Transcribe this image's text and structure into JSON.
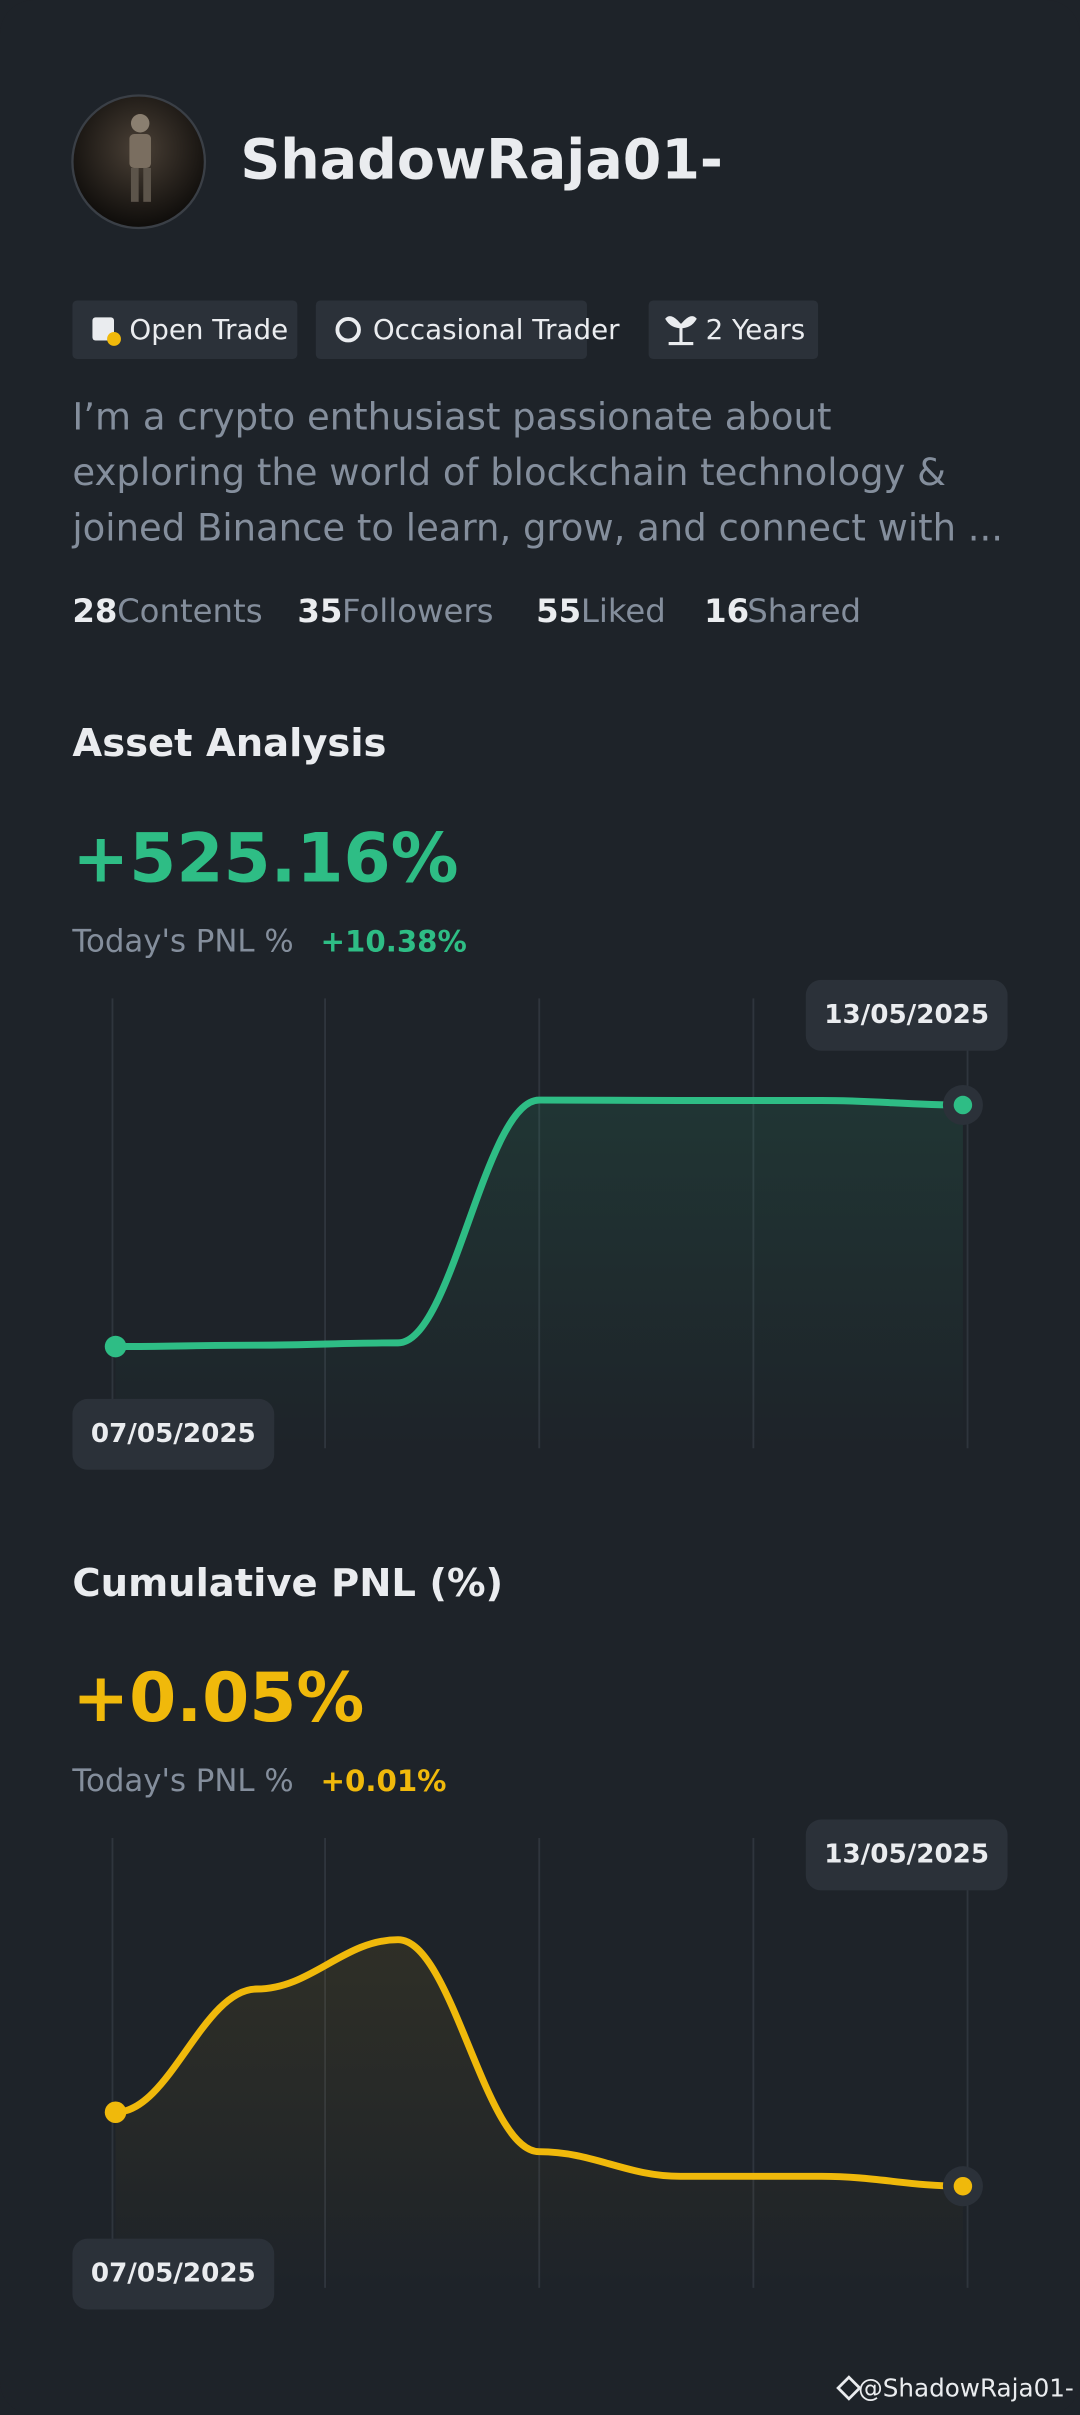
{
  "profile": {
    "name": "ShadowRaja01-",
    "tags": [
      "Open Trade",
      "Occasional Trader",
      "2 Years"
    ],
    "bio": [
      "I’m a crypto enthusiast passionate about",
      "exploring the world of blockchain technology &",
      "joined Binance to learn, grow, and connect with ..."
    ],
    "stats": [
      {
        "count": 28,
        "label": "Contents"
      },
      {
        "count": 35,
        "label": "Followers"
      },
      {
        "count": 55,
        "label": "Liked"
      },
      {
        "count": 16,
        "label": "Shared"
      }
    ]
  },
  "charts": [
    {
      "type": "line",
      "title": "Asset Analysis",
      "value": "+525.16%",
      "today_label": "Today's PNL %",
      "today_value": "+10.38%",
      "color": "#2ebd85",
      "categories": [
        "07/05/2025",
        null,
        null,
        null,
        null,
        null,
        "13/05/2025"
      ],
      "values": [
        0,
        3,
        8,
        536,
        535,
        535,
        525.16
      ]
    },
    {
      "type": "line",
      "title": "Cumulative PNL (%)",
      "value": "+0.05%",
      "today_label": "Today's PNL %",
      "today_value": "+0.01%",
      "color": "#f0b90b",
      "categories": [
        "07/05/2025",
        null,
        null,
        null,
        null,
        null,
        "13/05/2025"
      ],
      "values": [
        0.2,
        0.45,
        0.55,
        0.12,
        0.07,
        0.07,
        0.05
      ]
    }
  ],
  "watermark": "@ShadowRaja01-"
}
